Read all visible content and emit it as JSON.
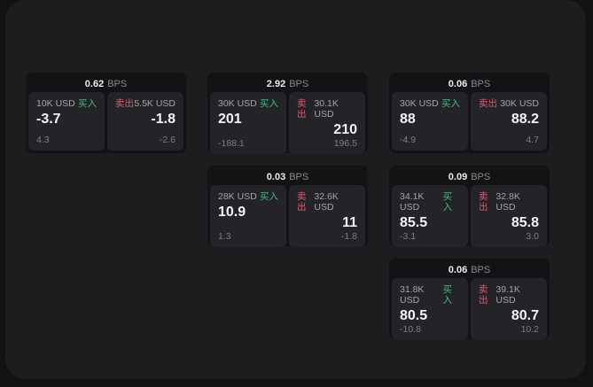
{
  "labels": {
    "bps_unit": "BPS",
    "buy": "买入",
    "sell": "卖出"
  },
  "colors": {
    "buy_accent": "#3fbd7c",
    "sell_accent": "#e0566f",
    "panel_background": "#1d1d1f",
    "card_background": "#131315",
    "tile_background": "#242428"
  },
  "cards": [
    {
      "bps": "0.62",
      "buy": {
        "amount": "10K USD",
        "value": "-3.7",
        "delta": "4.3"
      },
      "sell": {
        "amount": "5.5K USD",
        "value": "-1.8",
        "delta": "-2.6"
      }
    },
    {
      "bps": "2.92",
      "buy": {
        "amount": "30K USD",
        "value": "201",
        "delta": "-188.1"
      },
      "sell": {
        "amount": "30.1K USD",
        "value": "210",
        "delta": "196.5"
      }
    },
    {
      "bps": "0.06",
      "buy": {
        "amount": "30K USD",
        "value": "88",
        "delta": "-4.9"
      },
      "sell": {
        "amount": "30K USD",
        "value": "88.2",
        "delta": "4.7"
      }
    },
    {
      "bps": "0.03",
      "buy": {
        "amount": "28K USD",
        "value": "10.9",
        "delta": "1.3"
      },
      "sell": {
        "amount": "32.6K USD",
        "value": "11",
        "delta": "-1.8"
      }
    },
    {
      "bps": "0.09",
      "buy": {
        "amount": "34.1K USD",
        "value": "85.5",
        "delta": "-3.1"
      },
      "sell": {
        "amount": "32.8K USD",
        "value": "85.8",
        "delta": "3.0"
      }
    },
    {
      "bps": "0.06",
      "buy": {
        "amount": "31.8K USD",
        "value": "80.5",
        "delta": "-10.8"
      },
      "sell": {
        "amount": "39.1K USD",
        "value": "80.7",
        "delta": "10.2"
      }
    }
  ]
}
